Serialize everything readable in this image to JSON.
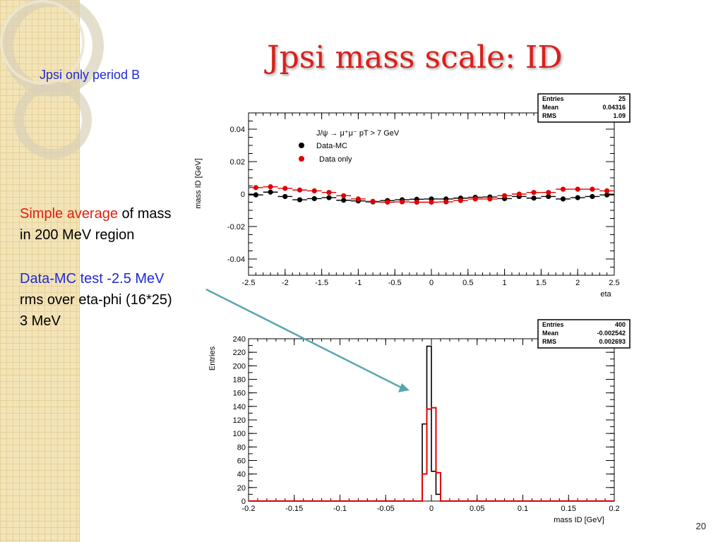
{
  "slide": {
    "title": "Jpsi mass scale: ID",
    "subtitle": "Jpsi only period B",
    "page_number": "20",
    "notes": {
      "line1_red": "Simple average",
      "line1_black": " of mass",
      "line2": "in 200 MeV region",
      "line3_blue": "Data-MC test -2.5 MeV",
      "line4": "rms over eta-phi (16*25)",
      "line5": "3 MeV"
    }
  },
  "chart_data": [
    {
      "type": "scatter",
      "title": "",
      "xlabel": "eta",
      "ylabel": "mass ID [GeV]",
      "xlim": [
        -2.5,
        2.5
      ],
      "ylim": [
        -0.05,
        0.05
      ],
      "x_ticks": [
        "-2.5",
        "-2",
        "-1.5",
        "-1",
        "-0.5",
        "0",
        "0.5",
        "1",
        "1.5",
        "2",
        "2.5"
      ],
      "y_ticks": [
        "-0.04",
        "-0.02",
        "0",
        "0.02",
        "0.04"
      ],
      "legend": {
        "header": "J/ψ → μ⁺μ⁻  pT > 7 GeV",
        "placement": "top-left"
      },
      "stats": {
        "entries_label": "Entries",
        "entries": "25",
        "mean_label": "Mean",
        "mean": "0.04316",
        "rms_label": "RMS",
        "rms": "1.09"
      },
      "x": [
        -2.4,
        -2.2,
        -2.0,
        -1.8,
        -1.6,
        -1.4,
        -1.2,
        -1.0,
        -0.8,
        -0.6,
        -0.4,
        -0.2,
        0.0,
        0.2,
        0.4,
        0.6,
        0.8,
        1.0,
        1.2,
        1.4,
        1.6,
        1.8,
        2.0,
        2.2,
        2.4
      ],
      "series": [
        {
          "name": "Data-MC",
          "color": "#000000",
          "values": [
            -0.0005,
            0.0012,
            -0.0015,
            -0.0035,
            -0.0028,
            -0.0022,
            -0.0038,
            -0.0042,
            -0.0048,
            -0.004,
            -0.0035,
            -0.0032,
            -0.003,
            -0.003,
            -0.0025,
            -0.002,
            -0.0018,
            -0.0028,
            -0.0015,
            -0.0025,
            -0.0015,
            -0.003,
            -0.0022,
            -0.0015,
            -0.0005
          ]
        },
        {
          "name": "Data only",
          "color": "#e00000",
          "values": [
            0.004,
            0.0045,
            0.0035,
            0.0025,
            0.002,
            0.001,
            -0.001,
            -0.003,
            -0.0045,
            -0.005,
            -0.0048,
            -0.005,
            -0.005,
            -0.0048,
            -0.004,
            -0.003,
            -0.003,
            -0.001,
            0.0,
            0.001,
            0.001,
            0.003,
            0.003,
            0.003,
            0.002
          ]
        }
      ]
    },
    {
      "type": "bar",
      "title": "",
      "xlabel": "mass ID [GeV]",
      "ylabel": "Entries",
      "xlim": [
        -0.2,
        0.2
      ],
      "ylim": [
        0,
        240
      ],
      "x_ticks": [
        "-0.2",
        "-0.15",
        "-0.1",
        "-0.05",
        "0",
        "0.05",
        "0.1",
        "0.15",
        "0.2"
      ],
      "y_ticks": [
        "0",
        "20",
        "40",
        "60",
        "80",
        "100",
        "120",
        "140",
        "160",
        "180",
        "200",
        "220",
        "240"
      ],
      "stats": {
        "entries_label": "Entries",
        "entries": "400",
        "mean_label": "Mean",
        "mean": "-0.002542",
        "rms_label": "RMS",
        "rms": "0.002693"
      },
      "bin_edges": [
        -0.01,
        -0.005,
        0.0,
        0.005,
        0.01
      ],
      "series": [
        {
          "name": "black histogram",
          "color": "#000000",
          "values": [
            114,
            229,
            44,
            10
          ]
        },
        {
          "name": "red histogram",
          "color": "#e00000",
          "values": [
            40,
            136,
            138,
            42
          ]
        }
      ]
    }
  ]
}
